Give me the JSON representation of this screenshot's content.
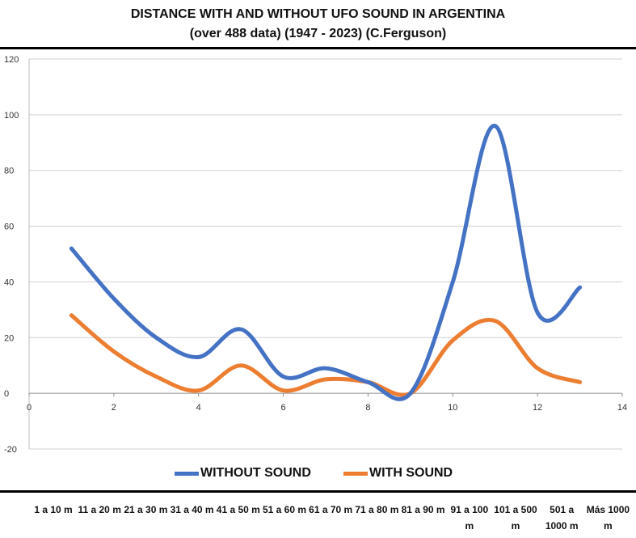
{
  "chart_data": {
    "type": "line",
    "title": "DISTANCE WITH AND WITHOUT UFO SOUND IN ARGENTINA",
    "subtitle": "(over 488 data) (1947 - 2023) (C.Ferguson)",
    "xlim": [
      0,
      14
    ],
    "ylim": [
      -20,
      120
    ],
    "x_ticks": [
      0,
      2,
      4,
      6,
      8,
      10,
      12,
      14
    ],
    "y_ticks": [
      -20,
      0,
      20,
      40,
      60,
      80,
      100,
      120
    ],
    "x": [
      1,
      2,
      3,
      4,
      5,
      6,
      7,
      8,
      9,
      10,
      11,
      12,
      13
    ],
    "series": [
      {
        "name": "WITHOUT SOUND",
        "color": "#4472C4",
        "values": [
          52,
          34,
          20,
          13,
          23,
          6,
          9,
          4,
          0,
          40,
          96,
          29,
          38
        ]
      },
      {
        "name": "WITH SOUND",
        "color": "#ED7D31",
        "values": [
          28,
          15,
          6,
          1,
          10,
          1,
          5,
          4,
          0,
          19,
          26,
          9,
          4
        ]
      }
    ],
    "grid": true,
    "legend_position": "bottom",
    "categories": [
      "1 a 10 m",
      "11 a 20 m",
      "21 a 30 m",
      "31 a 40 m",
      "41 a 50 m",
      "51 a 60 m",
      "61 a 70 m",
      "71 a 80 m",
      "81 a 90 m",
      "91 a 100 m",
      "101 a 500 m",
      "501 a 1000 m",
      "Más 1000 m"
    ]
  }
}
